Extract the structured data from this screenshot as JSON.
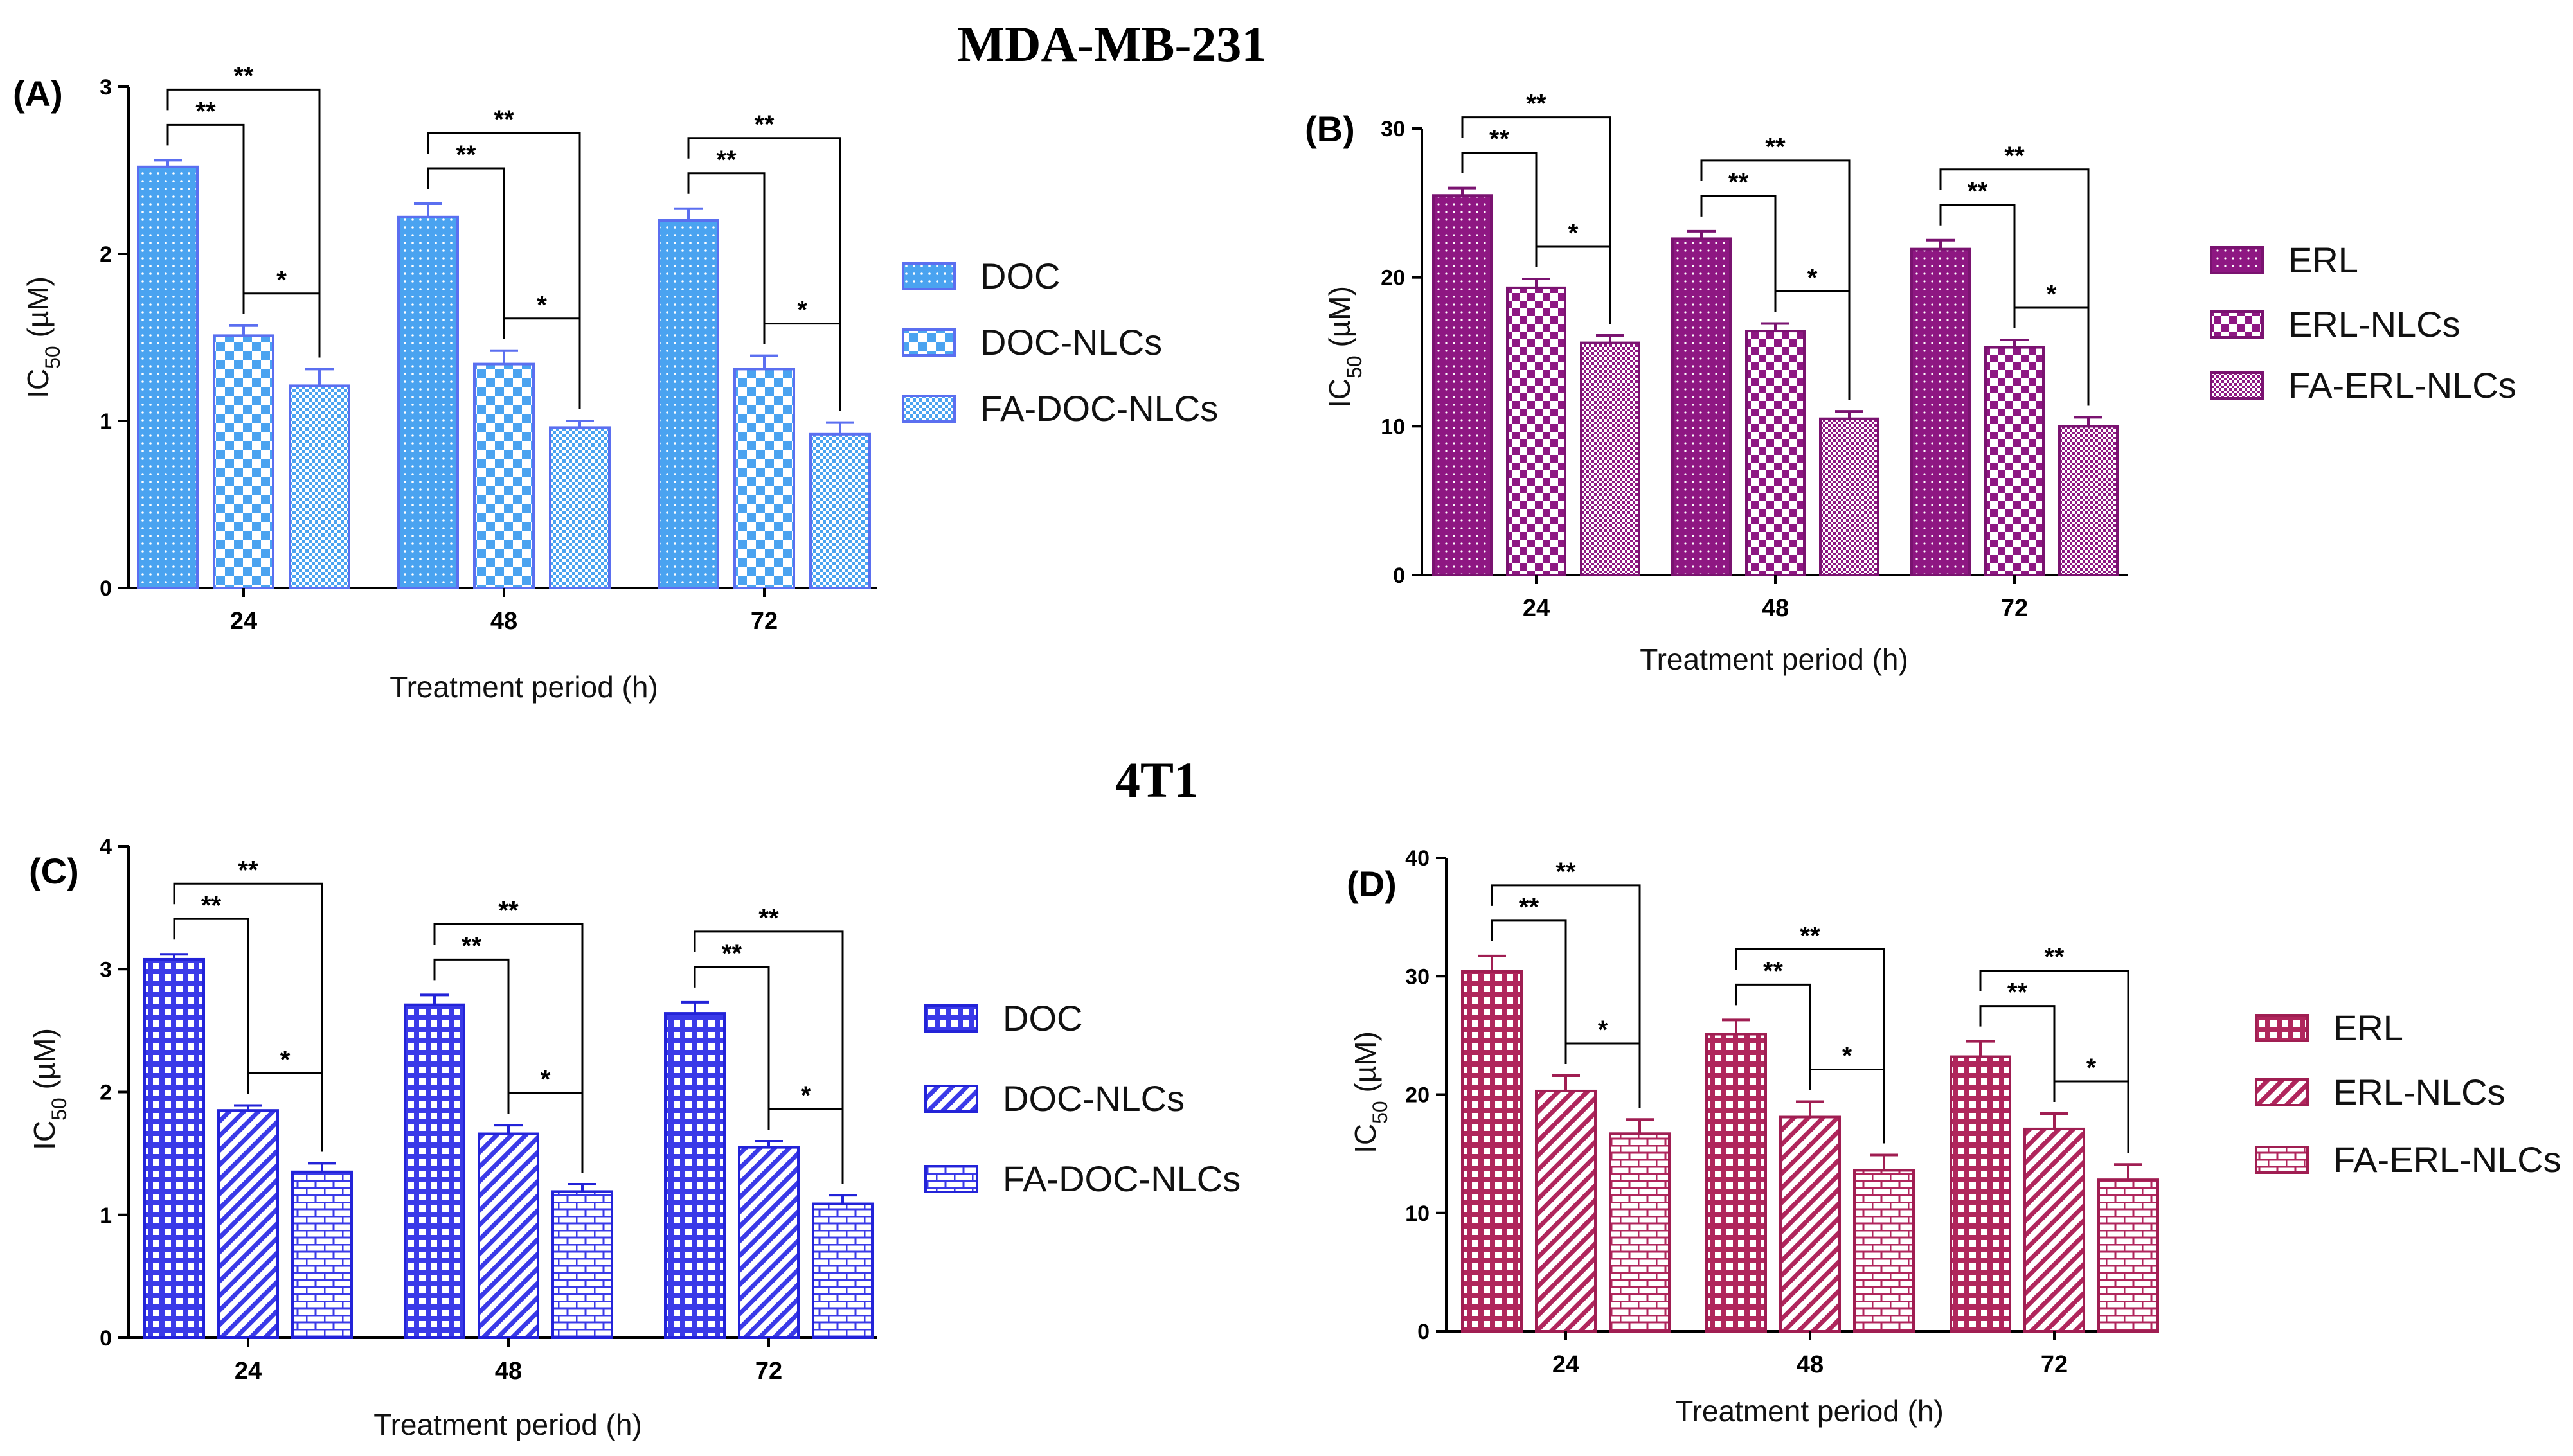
{
  "sections": [
    {
      "title": "MDA-MB-231"
    },
    {
      "title": "4T1"
    }
  ],
  "colors": {
    "doc_blue": "#4aa3f0",
    "doc_blue_stroke": "#5b6ff0",
    "erl_purple": "#8e1782",
    "erl_purple_stroke": "#7a1370",
    "doc_royal": "#3a3ae8",
    "doc_royal_stroke": "#2323d8",
    "erl_crimson": "#b0265c",
    "erl_crimson_stroke": "#a01e52"
  },
  "chart_data": [
    {
      "panel": "(A)",
      "type": "bar",
      "categories": [
        "24",
        "48",
        "72"
      ],
      "series": [
        {
          "name": "DOC",
          "values": [
            2.52,
            2.22,
            2.2
          ],
          "errors": [
            0.04,
            0.08,
            0.07
          ]
        },
        {
          "name": "DOC-NLCs",
          "values": [
            1.51,
            1.34,
            1.31
          ],
          "errors": [
            0.06,
            0.08,
            0.08
          ]
        },
        {
          "name": "FA-DOC-NLCs",
          "values": [
            1.21,
            0.96,
            0.92
          ],
          "errors": [
            0.1,
            0.04,
            0.07
          ]
        }
      ],
      "ylabel_main": "IC",
      "ylabel_sub": "50",
      "ylabel_unit": " (µM)",
      "xlabel": "Treatment period (h)",
      "ylim": [
        0,
        3
      ],
      "yticks": [
        "0",
        "1",
        "2",
        "3"
      ],
      "significance": [
        {
          "level": "**",
          "span": "DOC vs FA-DOC-NLCs"
        },
        {
          "level": "**",
          "span": "DOC vs DOC-NLCs"
        },
        {
          "level": "*",
          "span": "DOC-NLCs vs FA-DOC-NLCs"
        }
      ]
    },
    {
      "panel": "(B)",
      "type": "bar",
      "categories": [
        "24",
        "48",
        "72"
      ],
      "series": [
        {
          "name": "ERL",
          "values": [
            25.5,
            22.6,
            21.9
          ],
          "errors": [
            0.5,
            0.5,
            0.6
          ]
        },
        {
          "name": "ERL-NLCs",
          "values": [
            19.3,
            16.4,
            15.3
          ],
          "errors": [
            0.6,
            0.5,
            0.5
          ]
        },
        {
          "name": "FA-ERL-NLCs",
          "values": [
            15.6,
            10.5,
            10.0
          ],
          "errors": [
            0.5,
            0.5,
            0.6
          ]
        }
      ],
      "ylabel_main": "IC",
      "ylabel_sub": "50",
      "ylabel_unit": " (µM)",
      "xlabel": "Treatment period (h)",
      "ylim": [
        0,
        30
      ],
      "yticks": [
        "0",
        "10",
        "20",
        "30"
      ],
      "significance": [
        {
          "level": "**",
          "span": "ERL vs FA-ERL-NLCs"
        },
        {
          "level": "**",
          "span": "ERL vs ERL-NLCs"
        },
        {
          "level": "*",
          "span": "ERL-NLCs vs FA-ERL-NLCs"
        }
      ]
    },
    {
      "panel": "(C)",
      "type": "bar",
      "categories": [
        "24",
        "48",
        "72"
      ],
      "series": [
        {
          "name": "DOC",
          "values": [
            3.08,
            2.71,
            2.64
          ],
          "errors": [
            0.04,
            0.08,
            0.09
          ]
        },
        {
          "name": "DOC-NLCs",
          "values": [
            1.85,
            1.66,
            1.55
          ],
          "errors": [
            0.04,
            0.07,
            0.05
          ]
        },
        {
          "name": "FA-DOC-NLCs",
          "values": [
            1.35,
            1.19,
            1.09
          ],
          "errors": [
            0.07,
            0.06,
            0.07
          ]
        }
      ],
      "ylabel_main": "IC",
      "ylabel_sub": "50",
      "ylabel_unit": " (µM)",
      "xlabel": "Treatment period (h)",
      "ylim": [
        0,
        4
      ],
      "yticks": [
        "0",
        "1",
        "2",
        "3",
        "4"
      ],
      "significance": [
        {
          "level": "**",
          "span": "DOC vs FA-DOC-NLCs"
        },
        {
          "level": "**",
          "span": "DOC vs DOC-NLCs"
        },
        {
          "level": "*",
          "span": "DOC-NLCs vs FA-DOC-NLCs"
        }
      ]
    },
    {
      "panel": "(D)",
      "type": "bar",
      "categories": [
        "24",
        "48",
        "72"
      ],
      "series": [
        {
          "name": "ERL",
          "values": [
            30.4,
            25.1,
            23.2
          ],
          "errors": [
            1.3,
            1.2,
            1.3
          ]
        },
        {
          "name": "ERL-NLCs",
          "values": [
            20.3,
            18.1,
            17.1
          ],
          "errors": [
            1.3,
            1.3,
            1.3
          ]
        },
        {
          "name": "FA-ERL-NLCs",
          "values": [
            16.7,
            13.6,
            12.8
          ],
          "errors": [
            1.2,
            1.3,
            1.3
          ]
        }
      ],
      "ylabel_main": "IC",
      "ylabel_sub": "50",
      "ylabel_unit": " (µM)",
      "xlabel": "Treatment period (h)",
      "ylim": [
        0,
        40
      ],
      "yticks": [
        "0",
        "10",
        "20",
        "30",
        "40"
      ],
      "significance": [
        {
          "level": "**",
          "span": "ERL vs FA-ERL-NLCs"
        },
        {
          "level": "**",
          "span": "ERL vs ERL-NLCs"
        },
        {
          "level": "*",
          "span": "ERL-NLCs vs FA-ERL-NLCs"
        }
      ]
    }
  ]
}
